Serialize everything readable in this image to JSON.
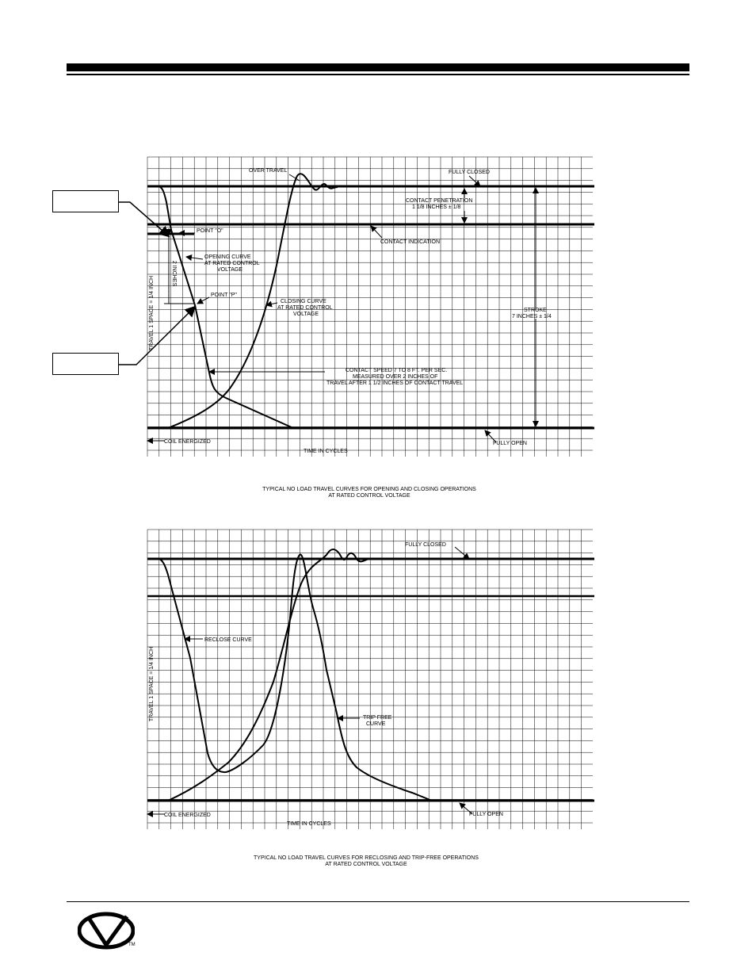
{
  "logo": {
    "tm": "TM"
  },
  "chart1": {
    "labels": {
      "over_travel": "OVER TRAVEL",
      "fully_closed": "FULLY CLOSED",
      "contact_penetration_1": "CONTACT PENETRATION",
      "contact_penetration_2": "1 1/8 INCHES ± 1/8",
      "contact_indication": "CONTACT INDICATION",
      "point_o": "POINT \"O\"",
      "two_inches": "2 INCHES",
      "opening_curve_1": "OPENING CURVE",
      "opening_curve_2": "AT RATED CONTROL",
      "opening_curve_3": "VOLTAGE",
      "point_p": "POINT \"P\"",
      "closing_curve_1": "CLOSING CURVE",
      "closing_curve_2": "AT RATED CONTROL",
      "closing_curve_3": "VOLTAGE",
      "y_axis": "TRAVEL 1 SPACE = 1/4 INCH",
      "stroke_1": "STROKE",
      "stroke_2": "7 INCHES ± 1/4",
      "speed_1": "CONTACT SPEED 7 TO 8 FT. PER SEC.",
      "speed_2": "MEASURED OVER 2 INCHES OF",
      "speed_3": "TRAVEL AFTER 1 1/2 INCHES OF CONTACT TRAVEL",
      "coil_energized": "COIL ENERGIZED",
      "time": "TIME IN CYCLES",
      "fully_open": "FULLY OPEN"
    },
    "caption_1": "TYPICAL NO LOAD TRAVEL CURVES FOR OPENING AND CLOSING OPERATIONS",
    "caption_2": "AT RATED CONTROL VOLTAGE"
  },
  "chart2": {
    "labels": {
      "fully_closed": "FULLY CLOSED",
      "reclose_curve": "RECLOSE CURVE",
      "y_axis": "TRAVEL 1 SPACE = 1/4 INCH",
      "trip_free_1": "TRIP FREE",
      "trip_free_2": "CURVE",
      "coil_energized": "COIL ENERGIZED",
      "time": "TIME IN CYCLES",
      "fully_open": "FULLY OPEN"
    },
    "caption_1": "TYPICAL NO LOAD TRAVEL CURVES FOR RECLOSING AND TRIP-FREE OPERATIONS",
    "caption_2": "AT RATED CONTROL VOLTAGE"
  }
}
